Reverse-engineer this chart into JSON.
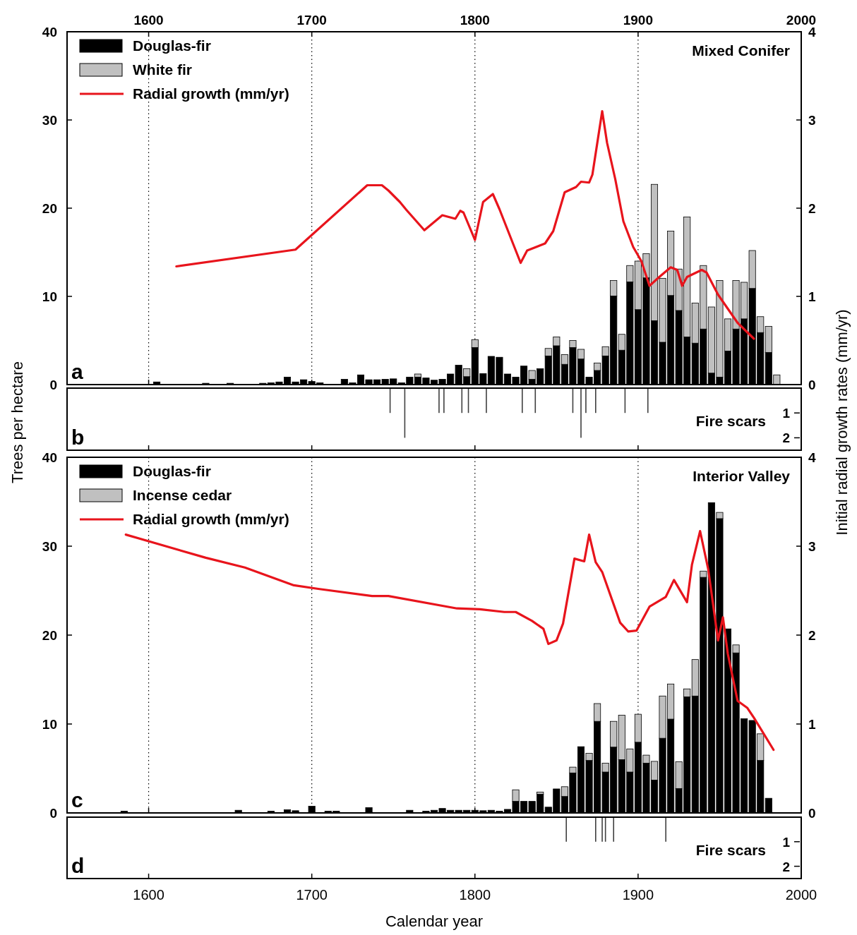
{
  "chart_data": [
    {
      "type": "bar",
      "stacked": true,
      "annotations": [
        "Mixed Conifer",
        "a"
      ],
      "legend": "top left",
      "grid": "x",
      "tick_labels": "y",
      "xlim": [
        1550,
        2000
      ],
      "xticks": [
        1600,
        1700,
        1800,
        1900,
        2000
      ],
      "x2lim": [
        1550,
        2000
      ],
      "x2ticks": [
        1600,
        1700,
        1800,
        1900,
        2000
      ],
      "ylim": [
        0,
        40
      ],
      "yticks": [
        0,
        10,
        20,
        30,
        40
      ],
      "y2lim": [
        0,
        4
      ],
      "y2ticks": [
        0,
        1,
        2,
        3,
        4
      ],
      "x": [
        1605,
        1635,
        1650,
        1670,
        1675,
        1680,
        1685,
        1690,
        1695,
        1700,
        1705,
        1720,
        1725,
        1730,
        1735,
        1740,
        1745,
        1750,
        1755,
        1760,
        1765,
        1770,
        1775,
        1780,
        1785,
        1790,
        1795,
        1800,
        1805,
        1810,
        1815,
        1820,
        1825,
        1830,
        1835,
        1840,
        1845,
        1850,
        1855,
        1860,
        1865,
        1870,
        1875,
        1880,
        1885,
        1890,
        1895,
        1900,
        1905,
        1910,
        1915,
        1920,
        1925,
        1930,
        1935,
        1940,
        1945,
        1950,
        1955,
        1960,
        1965,
        1970,
        1975,
        1980,
        1985
      ],
      "series": [
        {
          "name": "Douglas-fir",
          "color": "#000000",
          "values": [
            0.3,
            0.15,
            0.15,
            0.15,
            0.2,
            0.3,
            0.85,
            0.3,
            0.55,
            0.35,
            0.2,
            0.6,
            0.2,
            1.1,
            0.55,
            0.55,
            0.6,
            0.65,
            0.2,
            0.85,
            0.85,
            0.75,
            0.5,
            0.6,
            1.2,
            2.2,
            0.9,
            4.2,
            1.25,
            3.2,
            3.1,
            1.2,
            0.85,
            2.1,
            0.6,
            1.8,
            3.25,
            4.4,
            2.3,
            4.2,
            2.9,
            0.85,
            1.6,
            3.25,
            10.05,
            3.9,
            11.65,
            8.5,
            12.1,
            7.25,
            4.8,
            10.1,
            8.4,
            5.4,
            4.7,
            6.3,
            1.3,
            0.85,
            3.8,
            6.3,
            7.45,
            10.9,
            5.9,
            3.65,
            0
          ]
        },
        {
          "name": "White fir",
          "color": "#c0c0c0",
          "values": [
            0,
            0,
            0,
            0,
            0,
            0,
            0,
            0,
            0,
            0,
            0,
            0,
            0,
            0,
            0,
            0,
            0,
            0,
            0,
            0,
            0.35,
            0,
            0,
            0,
            0,
            0,
            0.9,
            0.9,
            0,
            0,
            0,
            0,
            0,
            0,
            1.0,
            0,
            0.85,
            1.0,
            1.1,
            0.8,
            1.1,
            0,
            0.85,
            1.05,
            1.75,
            1.8,
            1.85,
            5.5,
            2.75,
            15.45,
            7.25,
            7.3,
            4.7,
            13.6,
            4.55,
            7.2,
            7.5,
            10.95,
            3.65,
            5.5,
            4.15,
            4.3,
            1.8,
            2.95,
            1.1
          ]
        },
        {
          "name": "Radial growth (mm/yr)",
          "type": "line",
          "axis": "y2",
          "color": "#e8141c",
          "x": [
            1617,
            1690,
            1734,
            1743,
            1747,
            1754,
            1758,
            1769,
            1780,
            1788,
            1791,
            1793,
            1800,
            1805,
            1811,
            1815,
            1828,
            1832,
            1843,
            1848,
            1855,
            1862,
            1865,
            1870,
            1872,
            1878,
            1881,
            1886,
            1891,
            1897,
            1902,
            1907,
            1913,
            1920,
            1924,
            1927,
            1930,
            1939,
            1942,
            1949,
            1961,
            1971
          ],
          "values": [
            1.34,
            1.53,
            2.26,
            2.26,
            2.2,
            2.07,
            1.98,
            1.75,
            1.92,
            1.88,
            1.97,
            1.95,
            1.64,
            2.07,
            2.16,
            1.99,
            1.38,
            1.52,
            1.6,
            1.74,
            2.18,
            2.24,
            2.3,
            2.29,
            2.38,
            3.1,
            2.74,
            2.33,
            1.85,
            1.56,
            1.4,
            1.12,
            1.22,
            1.33,
            1.3,
            1.12,
            1.22,
            1.3,
            1.27,
            1.02,
            0.7,
            0.52
          ]
        }
      ]
    },
    {
      "type": "bar",
      "annotations": [
        "Fire scars",
        "b"
      ],
      "ylabel": "Trees per hectare",
      "y2label": "Initial radial growth rates (mm/yr)",
      "tick_labels": "y",
      "xlim": [
        1550,
        2000
      ],
      "xticks": [
        1600,
        1700,
        1800,
        1900,
        2000
      ],
      "y2lim": [
        2.5,
        0
      ],
      "y2ticks": [
        1,
        2
      ],
      "x": [
        1748,
        1757,
        1778,
        1781,
        1792,
        1796,
        1807,
        1829,
        1837,
        1860,
        1865,
        1868,
        1874,
        1892,
        1906
      ],
      "series": [
        {
          "axis": "y2",
          "color": "#404040",
          "values": [
            1,
            2,
            1,
            1,
            1,
            1,
            1,
            1,
            1,
            1,
            2,
            1,
            1,
            1,
            1
          ]
        }
      ]
    },
    {
      "type": "bar",
      "stacked": true,
      "annotations": [
        "Interior Valley",
        "c"
      ],
      "legend": "top left",
      "grid": "x",
      "tick_labels": "y",
      "xlim": [
        1550,
        2000
      ],
      "xticks": [
        1600,
        1700,
        1800,
        1900,
        2000
      ],
      "ylim": [
        0,
        40
      ],
      "yticks": [
        0,
        10,
        20,
        30,
        40
      ],
      "y2lim": [
        0,
        4
      ],
      "y2ticks": [
        0,
        1,
        2,
        3,
        4
      ],
      "x": [
        1585,
        1655,
        1675,
        1685,
        1690,
        1700,
        1710,
        1715,
        1735,
        1760,
        1770,
        1775,
        1780,
        1785,
        1790,
        1795,
        1800,
        1805,
        1810,
        1815,
        1820,
        1825,
        1830,
        1835,
        1840,
        1845,
        1850,
        1855,
        1860,
        1865,
        1870,
        1875,
        1880,
        1885,
        1890,
        1895,
        1900,
        1905,
        1910,
        1915,
        1920,
        1925,
        1930,
        1935,
        1940,
        1945,
        1950,
        1955,
        1960,
        1965,
        1970,
        1975,
        1980
      ],
      "series": [
        {
          "name": "Douglas-fir",
          "color": "#000000",
          "values": [
            0.2,
            0.3,
            0.2,
            0.35,
            0.25,
            0.75,
            0.2,
            0.2,
            0.6,
            0.3,
            0.2,
            0.3,
            0.5,
            0.3,
            0.3,
            0.3,
            0.3,
            0.25,
            0.3,
            0.2,
            0.4,
            1.3,
            1.3,
            1.3,
            2.1,
            0.65,
            2.7,
            1.85,
            4.5,
            7.45,
            5.9,
            10.3,
            4.6,
            7.4,
            6.0,
            4.6,
            7.95,
            5.6,
            3.7,
            8.4,
            10.55,
            2.75,
            13.05,
            13.15,
            26.5,
            34.9,
            33.1,
            20.7,
            18.0,
            10.6,
            10.4,
            5.9,
            1.65
          ]
        },
        {
          "name": "Incense cedar",
          "color": "#c0c0c0",
          "values": [
            0,
            0,
            0,
            0,
            0,
            0,
            0,
            0,
            0,
            0,
            0,
            0,
            0,
            0,
            0,
            0,
            0,
            0,
            0,
            0,
            0,
            1.3,
            0,
            0,
            0.25,
            0,
            0,
            1.1,
            0.65,
            0,
            0.8,
            2.0,
            1.0,
            2.9,
            5.0,
            2.6,
            3.15,
            0.9,
            2.1,
            4.75,
            3.95,
            3.0,
            0.9,
            4.1,
            0.7,
            0,
            0.7,
            0,
            0.9,
            0,
            0,
            3.0,
            0
          ]
        },
        {
          "name": "Radial growth (mm/yr)",
          "type": "line",
          "axis": "y2",
          "color": "#e8141c",
          "x": [
            1586,
            1635,
            1659,
            1689,
            1704,
            1737,
            1747,
            1789,
            1803,
            1818,
            1825,
            1835,
            1842,
            1845,
            1850,
            1854,
            1861,
            1867,
            1870,
            1874,
            1878,
            1889,
            1894,
            1899,
            1907,
            1917,
            1922,
            1930,
            1933,
            1938,
            1943,
            1949,
            1952,
            1955,
            1961,
            1967,
            1971,
            1983
          ],
          "values": [
            3.13,
            2.87,
            2.76,
            2.56,
            2.52,
            2.44,
            2.44,
            2.3,
            2.29,
            2.26,
            2.26,
            2.16,
            2.07,
            1.9,
            1.94,
            2.13,
            2.86,
            2.83,
            3.13,
            2.82,
            2.71,
            2.14,
            2.04,
            2.05,
            2.32,
            2.43,
            2.62,
            2.37,
            2.79,
            3.17,
            2.74,
            1.94,
            2.2,
            1.79,
            1.26,
            1.18,
            1.07,
            0.71
          ]
        }
      ]
    },
    {
      "type": "bar",
      "annotations": [
        "Fire scars",
        "d"
      ],
      "xlabel": "Calendar year",
      "xlim": [
        1550,
        2000
      ],
      "xticks": [
        1600,
        1700,
        1800,
        1900,
        2000
      ],
      "y2lim": [
        2.5,
        0
      ],
      "y2ticks": [
        1,
        2
      ],
      "x": [
        1856,
        1874,
        1878,
        1880,
        1885,
        1917
      ],
      "series": [
        {
          "axis": "y2",
          "color": "#404040",
          "values": [
            1,
            1,
            1,
            1,
            1,
            1
          ]
        }
      ]
    }
  ]
}
